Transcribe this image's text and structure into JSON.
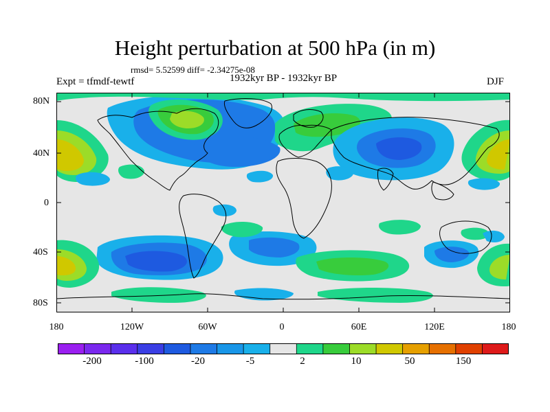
{
  "title": "Height perturbation at 500 hPa (in m)",
  "stats": "rmsd= 5.52599 diff= -2.34275e-08",
  "experiment": "Expt = tfmdf-tewtf",
  "period": "1932kyr BP - 1932kyr BP",
  "season": "DJF",
  "lat_labels": [
    "80N",
    "40N",
    "0",
    "40S",
    "80S"
  ],
  "lon_labels": [
    "180",
    "120W",
    "60W",
    "0",
    "60E",
    "120E",
    "180"
  ],
  "colorbar": {
    "labels": [
      "-200",
      "-100",
      "-20",
      "-5",
      "2",
      "10",
      "50",
      "150"
    ],
    "colors": [
      "#9a1ff0",
      "#7a28ee",
      "#5a2fec",
      "#3a3ee4",
      "#1e5ae0",
      "#1e7ae6",
      "#1896e8",
      "#19b0ea",
      "#e6e6e6",
      "#1fd68a",
      "#38cc3c",
      "#9cdc28",
      "#d0c800",
      "#e6a000",
      "#e67000",
      "#e04000",
      "#de1a1a"
    ]
  },
  "colors": {
    "land_base": "#e6e6e6",
    "outline": "#000000"
  }
}
